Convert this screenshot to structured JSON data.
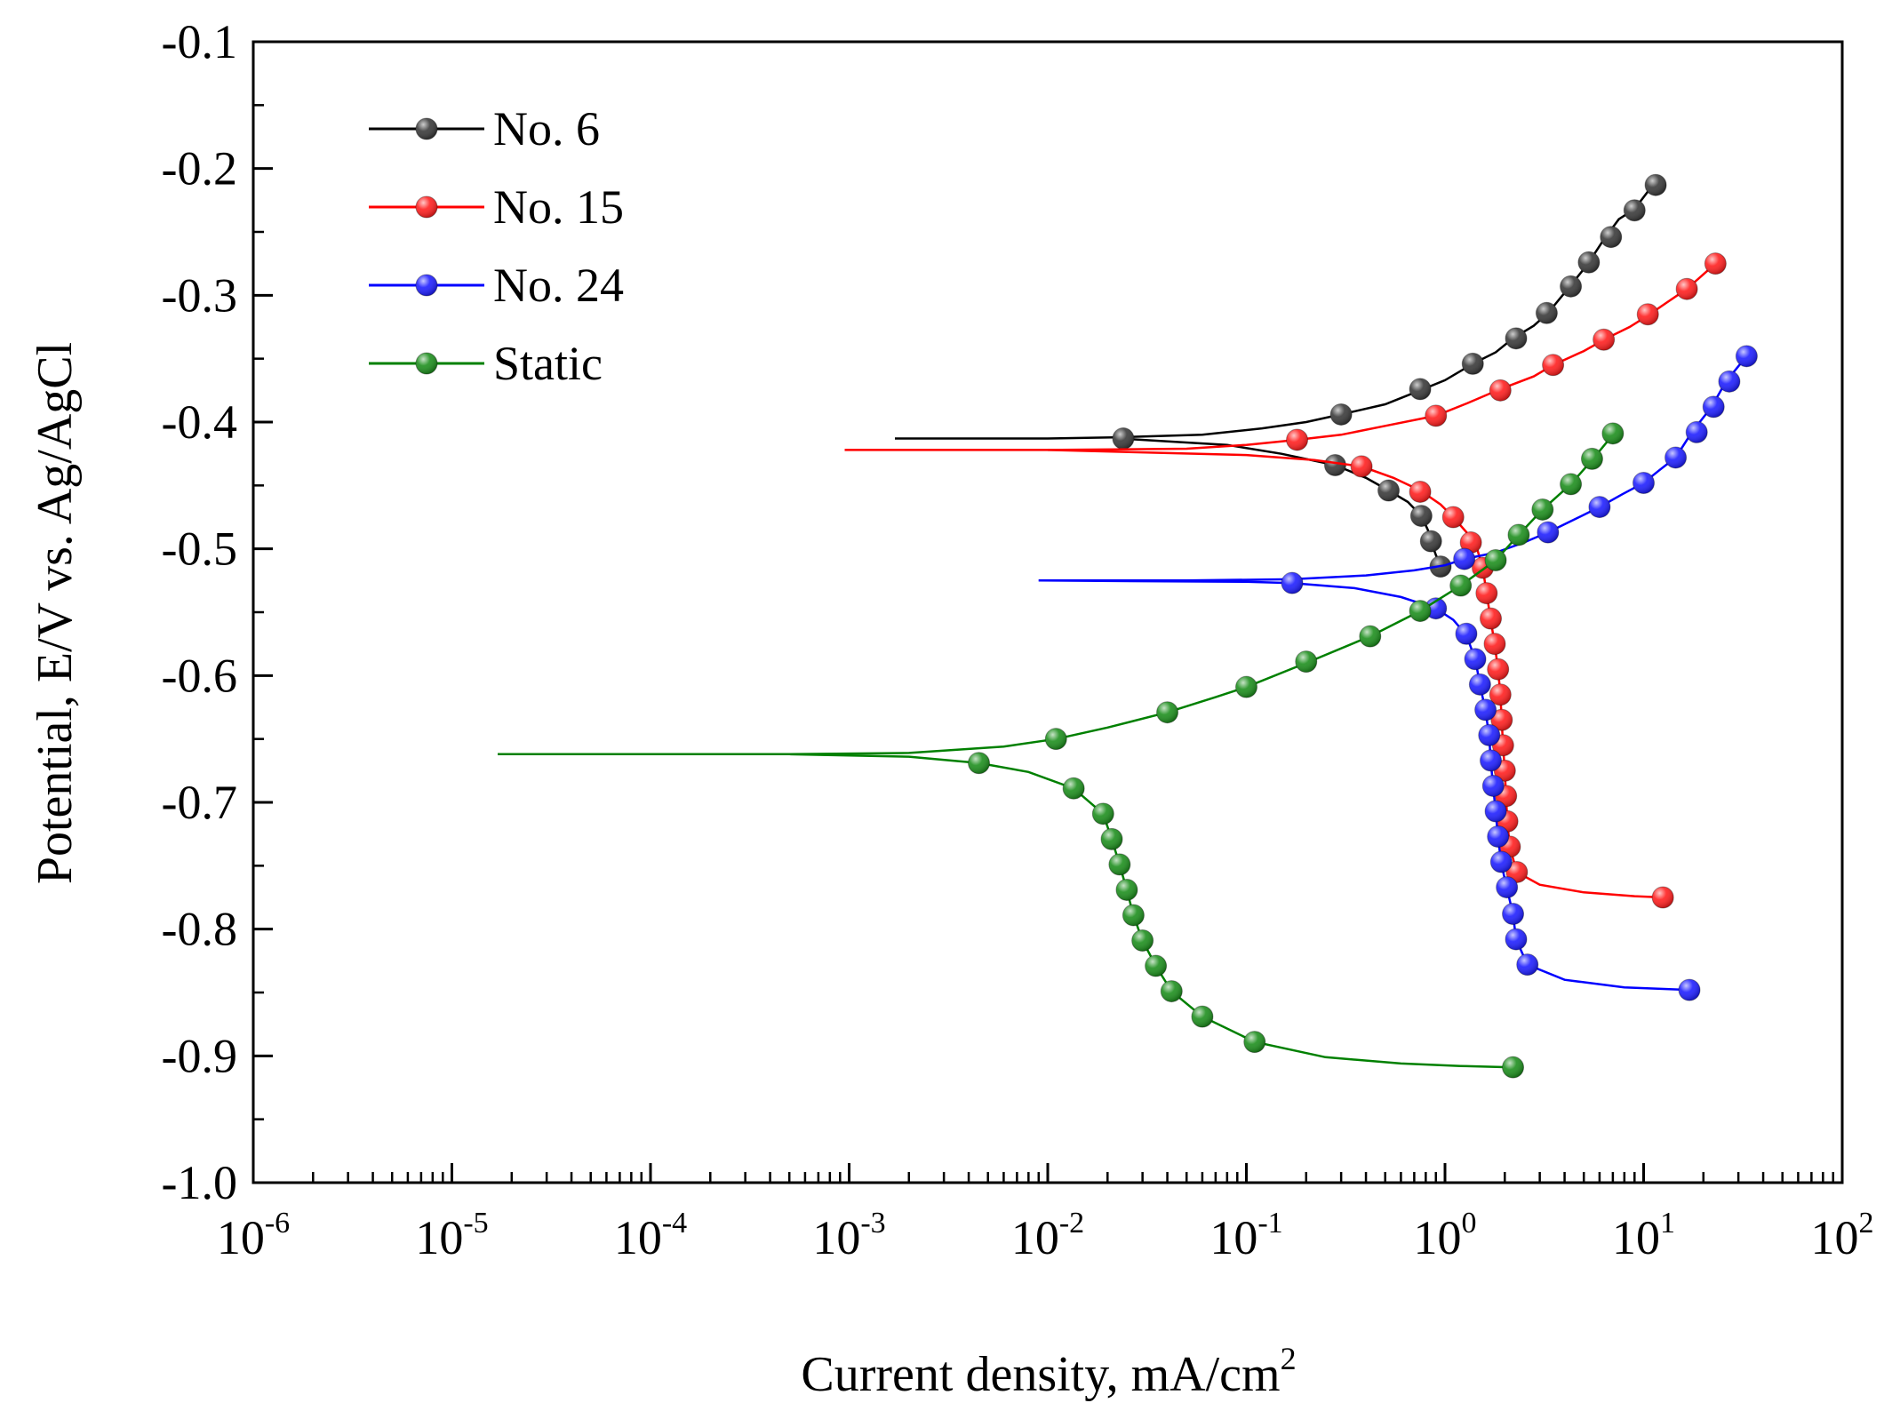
{
  "chart_data": {
    "type": "line",
    "title": "",
    "xlabel": "Current density, mA/cm",
    "xlabel_superscript": "2",
    "ylabel": "Potential, E/V vs. Ag/AgCl",
    "xscale": "log",
    "xlim": [
      1e-06,
      100
    ],
    "ylim": [
      -1.0,
      -0.1
    ],
    "x_ticks": [
      {
        "base": "10",
        "exp": "-6"
      },
      {
        "base": "10",
        "exp": "-5"
      },
      {
        "base": "10",
        "exp": "-4"
      },
      {
        "base": "10",
        "exp": "-3"
      },
      {
        "base": "10",
        "exp": "-2"
      },
      {
        "base": "10",
        "exp": "-1"
      },
      {
        "base": "10",
        "exp": "0"
      },
      {
        "base": "10",
        "exp": "1"
      },
      {
        "base": "10",
        "exp": "2"
      }
    ],
    "y_ticks": [
      "-0.1",
      "-0.2",
      "-0.3",
      "-0.4",
      "-0.5",
      "-0.6",
      "-0.7",
      "-0.8",
      "-0.9",
      "-1.0"
    ],
    "legend_position": "top-left",
    "series": [
      {
        "name": "No. 6",
        "color": "#000000",
        "marker_color": "#3a3a3a",
        "anodic_line": [
          [
            0.0017,
            -0.413
          ],
          [
            0.01,
            -0.413
          ],
          [
            0.023,
            -0.412
          ],
          [
            0.06,
            -0.41
          ],
          [
            0.12,
            -0.405
          ],
          [
            0.2,
            -0.4
          ],
          [
            0.3,
            -0.394
          ],
          [
            0.5,
            -0.386
          ],
          [
            0.75,
            -0.375
          ],
          [
            1.0,
            -0.367
          ],
          [
            1.38,
            -0.354
          ],
          [
            1.8,
            -0.345
          ],
          [
            2.2,
            -0.334
          ],
          [
            2.8,
            -0.324
          ],
          [
            3.3,
            -0.314
          ],
          [
            4.2,
            -0.294
          ],
          [
            5.2,
            -0.276
          ],
          [
            6.3,
            -0.256
          ],
          [
            7.5,
            -0.24
          ],
          [
            9.0,
            -0.232
          ],
          [
            11.0,
            -0.214
          ]
        ],
        "cathodic_line": [
          [
            0.023,
            -0.413
          ],
          [
            0.08,
            -0.418
          ],
          [
            0.15,
            -0.425
          ],
          [
            0.28,
            -0.434
          ],
          [
            0.4,
            -0.444
          ],
          [
            0.52,
            -0.454
          ],
          [
            0.65,
            -0.463
          ],
          [
            0.76,
            -0.474
          ],
          [
            0.82,
            -0.485
          ],
          [
            0.85,
            -0.494
          ],
          [
            0.9,
            -0.505
          ],
          [
            0.95,
            -0.513
          ]
        ],
        "anodic_markers": [
          [
            0.024,
            -0.413
          ],
          [
            0.3,
            -0.394
          ],
          [
            0.75,
            -0.374
          ],
          [
            1.38,
            -0.354
          ],
          [
            2.28,
            -0.334
          ],
          [
            3.25,
            -0.314
          ],
          [
            4.3,
            -0.293
          ],
          [
            5.3,
            -0.274
          ],
          [
            6.85,
            -0.254
          ],
          [
            9.0,
            -0.233
          ],
          [
            11.5,
            -0.213
          ]
        ],
        "cathodic_markers": [
          [
            0.28,
            -0.434
          ],
          [
            0.52,
            -0.454
          ],
          [
            0.76,
            -0.474
          ],
          [
            0.85,
            -0.494
          ],
          [
            0.95,
            -0.514
          ]
        ]
      },
      {
        "name": "No. 15",
        "color": "#ff0000",
        "marker_color": "#ff2020",
        "anodic_line": [
          [
            0.00095,
            -0.422
          ],
          [
            0.01,
            -0.422
          ],
          [
            0.05,
            -0.421
          ],
          [
            0.1,
            -0.418
          ],
          [
            0.18,
            -0.414
          ],
          [
            0.3,
            -0.41
          ],
          [
            0.5,
            -0.403
          ],
          [
            0.9,
            -0.395
          ],
          [
            1.3,
            -0.385
          ],
          [
            1.9,
            -0.374
          ],
          [
            2.8,
            -0.364
          ],
          [
            3.5,
            -0.355
          ],
          [
            5.0,
            -0.344
          ],
          [
            6.5,
            -0.334
          ],
          [
            8.5,
            -0.325
          ],
          [
            10.5,
            -0.316
          ],
          [
            13.0,
            -0.306
          ],
          [
            16.5,
            -0.295
          ],
          [
            19.5,
            -0.285
          ],
          [
            23.0,
            -0.275
          ]
        ],
        "cathodic_line": [
          [
            0.01,
            -0.422
          ],
          [
            0.1,
            -0.426
          ],
          [
            0.22,
            -0.43
          ],
          [
            0.38,
            -0.435
          ],
          [
            0.55,
            -0.444
          ],
          [
            0.75,
            -0.454
          ],
          [
            0.95,
            -0.465
          ],
          [
            1.1,
            -0.475
          ],
          [
            1.3,
            -0.488
          ],
          [
            1.45,
            -0.5
          ],
          [
            1.55,
            -0.515
          ],
          [
            1.62,
            -0.535
          ],
          [
            1.7,
            -0.556
          ],
          [
            1.78,
            -0.576
          ],
          [
            1.85,
            -0.595
          ],
          [
            1.9,
            -0.615
          ],
          [
            1.93,
            -0.635
          ],
          [
            1.96,
            -0.655
          ],
          [
            2.0,
            -0.675
          ],
          [
            2.03,
            -0.695
          ],
          [
            2.06,
            -0.715
          ],
          [
            2.12,
            -0.735
          ],
          [
            2.3,
            -0.755
          ],
          [
            3.0,
            -0.765
          ],
          [
            5.0,
            -0.771
          ],
          [
            9.0,
            -0.774
          ],
          [
            12.5,
            -0.775
          ]
        ],
        "anodic_markers": [
          [
            0.18,
            -0.414
          ],
          [
            0.9,
            -0.395
          ],
          [
            1.9,
            -0.375
          ],
          [
            3.5,
            -0.355
          ],
          [
            6.3,
            -0.335
          ],
          [
            10.5,
            -0.315
          ],
          [
            16.5,
            -0.295
          ],
          [
            23.0,
            -0.275
          ]
        ],
        "cathodic_markers": [
          [
            0.38,
            -0.435
          ],
          [
            0.75,
            -0.455
          ],
          [
            1.1,
            -0.475
          ],
          [
            1.35,
            -0.495
          ],
          [
            1.55,
            -0.515
          ],
          [
            1.62,
            -0.535
          ],
          [
            1.7,
            -0.555
          ],
          [
            1.78,
            -0.575
          ],
          [
            1.85,
            -0.595
          ],
          [
            1.9,
            -0.615
          ],
          [
            1.93,
            -0.635
          ],
          [
            1.96,
            -0.655
          ],
          [
            2.0,
            -0.675
          ],
          [
            2.03,
            -0.695
          ],
          [
            2.06,
            -0.715
          ],
          [
            2.12,
            -0.735
          ],
          [
            2.3,
            -0.755
          ],
          [
            12.5,
            -0.775
          ]
        ]
      },
      {
        "name": "No. 24",
        "color": "#0000ff",
        "marker_color": "#2020ff",
        "anodic_line": [
          [
            0.009,
            -0.525
          ],
          [
            0.05,
            -0.525
          ],
          [
            0.17,
            -0.524
          ],
          [
            0.4,
            -0.521
          ],
          [
            0.7,
            -0.517
          ],
          [
            1.0,
            -0.513
          ],
          [
            1.25,
            -0.508
          ],
          [
            1.8,
            -0.503
          ],
          [
            2.5,
            -0.495
          ],
          [
            3.3,
            -0.487
          ],
          [
            4.6,
            -0.476
          ],
          [
            6.0,
            -0.467
          ],
          [
            7.8,
            -0.457
          ],
          [
            10.0,
            -0.448
          ],
          [
            12.0,
            -0.438
          ],
          [
            14.5,
            -0.428
          ],
          [
            17.5,
            -0.408
          ],
          [
            22.0,
            -0.388
          ],
          [
            26.0,
            -0.368
          ],
          [
            33.0,
            -0.348
          ]
        ],
        "cathodic_line": [
          [
            0.009,
            -0.525
          ],
          [
            0.1,
            -0.526
          ],
          [
            0.17,
            -0.527
          ],
          [
            0.35,
            -0.531
          ],
          [
            0.6,
            -0.538
          ],
          [
            0.9,
            -0.547
          ],
          [
            1.1,
            -0.556
          ],
          [
            1.28,
            -0.568
          ],
          [
            1.42,
            -0.587
          ],
          [
            1.5,
            -0.607
          ],
          [
            1.6,
            -0.628
          ],
          [
            1.67,
            -0.648
          ],
          [
            1.7,
            -0.668
          ],
          [
            1.75,
            -0.688
          ],
          [
            1.8,
            -0.708
          ],
          [
            1.85,
            -0.728
          ],
          [
            1.92,
            -0.748
          ],
          [
            2.05,
            -0.768
          ],
          [
            2.2,
            -0.788
          ],
          [
            2.28,
            -0.808
          ],
          [
            2.6,
            -0.828
          ],
          [
            4.0,
            -0.84
          ],
          [
            8.0,
            -0.846
          ],
          [
            17.0,
            -0.848
          ]
        ],
        "anodic_markers": [
          [
            1.25,
            -0.508
          ],
          [
            3.3,
            -0.487
          ],
          [
            6.0,
            -0.467
          ],
          [
            10.0,
            -0.448
          ],
          [
            14.5,
            -0.428
          ],
          [
            18.5,
            -0.408
          ],
          [
            22.5,
            -0.388
          ],
          [
            27.0,
            -0.368
          ],
          [
            33.0,
            -0.348
          ]
        ],
        "cathodic_markers": [
          [
            0.17,
            -0.527
          ],
          [
            0.9,
            -0.547
          ],
          [
            1.28,
            -0.567
          ],
          [
            1.42,
            -0.587
          ],
          [
            1.5,
            -0.607
          ],
          [
            1.6,
            -0.627
          ],
          [
            1.67,
            -0.647
          ],
          [
            1.7,
            -0.667
          ],
          [
            1.75,
            -0.687
          ],
          [
            1.8,
            -0.707
          ],
          [
            1.85,
            -0.727
          ],
          [
            1.92,
            -0.747
          ],
          [
            2.05,
            -0.767
          ],
          [
            2.2,
            -0.788
          ],
          [
            2.28,
            -0.808
          ],
          [
            2.6,
            -0.828
          ],
          [
            17.0,
            -0.848
          ]
        ]
      },
      {
        "name": "Static",
        "color": "#008000",
        "marker_color": "#1e8f1e",
        "anodic_line": [
          [
            1.7e-05,
            -0.662
          ],
          [
            0.0005,
            -0.662
          ],
          [
            0.002,
            -0.661
          ],
          [
            0.006,
            -0.656
          ],
          [
            0.011,
            -0.65
          ],
          [
            0.02,
            -0.641
          ],
          [
            0.04,
            -0.629
          ],
          [
            0.07,
            -0.617
          ],
          [
            0.1,
            -0.609
          ],
          [
            0.2,
            -0.59
          ],
          [
            0.42,
            -0.569
          ],
          [
            0.75,
            -0.549
          ],
          [
            1.2,
            -0.529
          ],
          [
            1.8,
            -0.509
          ],
          [
            2.35,
            -0.489
          ],
          [
            3.1,
            -0.469
          ],
          [
            4.3,
            -0.449
          ],
          [
            5.5,
            -0.43
          ],
          [
            7.0,
            -0.41
          ]
        ],
        "cathodic_line": [
          [
            0.0005,
            -0.662
          ],
          [
            0.002,
            -0.664
          ],
          [
            0.0045,
            -0.669
          ],
          [
            0.008,
            -0.676
          ],
          [
            0.0135,
            -0.689
          ],
          [
            0.019,
            -0.709
          ],
          [
            0.021,
            -0.729
          ],
          [
            0.023,
            -0.749
          ],
          [
            0.025,
            -0.769
          ],
          [
            0.027,
            -0.789
          ],
          [
            0.03,
            -0.809
          ],
          [
            0.035,
            -0.829
          ],
          [
            0.042,
            -0.849
          ],
          [
            0.06,
            -0.869
          ],
          [
            0.11,
            -0.889
          ],
          [
            0.25,
            -0.901
          ],
          [
            0.6,
            -0.906
          ],
          [
            1.2,
            -0.908
          ],
          [
            2.2,
            -0.909
          ]
        ],
        "anodic_markers": [
          [
            0.011,
            -0.65
          ],
          [
            0.04,
            -0.629
          ],
          [
            0.1,
            -0.609
          ],
          [
            0.2,
            -0.589
          ],
          [
            0.42,
            -0.569
          ],
          [
            0.75,
            -0.549
          ],
          [
            1.2,
            -0.529
          ],
          [
            1.8,
            -0.509
          ],
          [
            2.35,
            -0.489
          ],
          [
            3.1,
            -0.469
          ],
          [
            4.3,
            -0.449
          ],
          [
            5.5,
            -0.429
          ],
          [
            7.0,
            -0.409
          ]
        ],
        "cathodic_markers": [
          [
            0.0045,
            -0.669
          ],
          [
            0.0135,
            -0.689
          ],
          [
            0.019,
            -0.709
          ],
          [
            0.021,
            -0.729
          ],
          [
            0.023,
            -0.749
          ],
          [
            0.025,
            -0.769
          ],
          [
            0.027,
            -0.789
          ],
          [
            0.03,
            -0.809
          ],
          [
            0.035,
            -0.829
          ],
          [
            0.042,
            -0.849
          ],
          [
            0.06,
            -0.869
          ],
          [
            0.11,
            -0.889
          ],
          [
            2.2,
            -0.909
          ]
        ]
      }
    ]
  }
}
